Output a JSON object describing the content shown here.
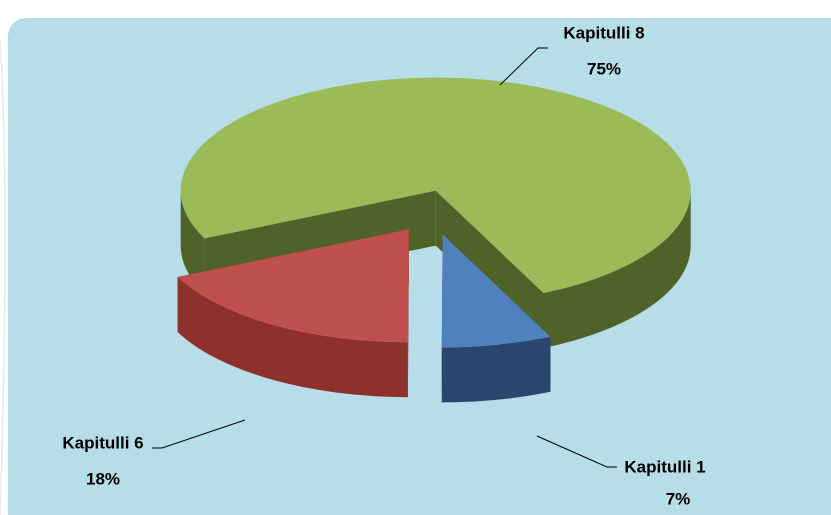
{
  "chart_data": {
    "type": "pie",
    "categories": [
      "Kapitulli 1",
      "Kapitulli 6",
      "Kapitulli 8"
    ],
    "values": [
      7,
      18,
      75
    ],
    "value_labels": [
      "7%",
      "18%",
      "75%"
    ],
    "colors": [
      "#4f81bd",
      "#c0504d",
      "#9bbb59"
    ],
    "side_colors": [
      "#2a466f",
      "#8e302c",
      "#4f6228"
    ]
  }
}
